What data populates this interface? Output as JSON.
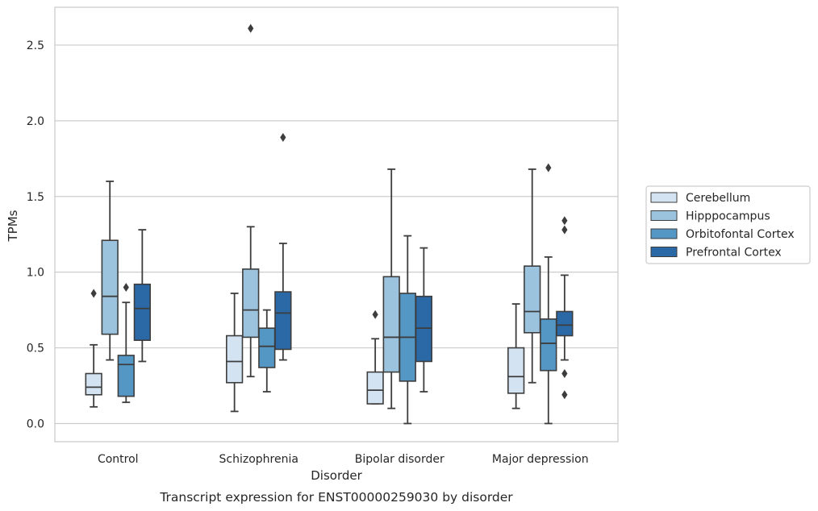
{
  "chart_data": {
    "type": "boxplot",
    "title": "",
    "caption": "Transcript expression for ENST00000259030 by disorder",
    "xlabel": "Disorder",
    "ylabel": "TPMs",
    "ylim": [
      -0.12,
      2.75
    ],
    "yticks": [
      "0.0",
      "0.5",
      "1.0",
      "1.5",
      "2.0",
      "2.5"
    ],
    "grid": "horizontal",
    "legend_position": "right",
    "categories": [
      "Control",
      "Schizophrenia",
      "Bipolar disorder",
      "Major depression"
    ],
    "series": [
      {
        "name": "Cerebellum",
        "color": "#d3e3f2",
        "boxes": [
          {
            "whislo": 0.11,
            "q1": 0.19,
            "med": 0.24,
            "q3": 0.33,
            "whishi": 0.52,
            "fliers": [
              0.86
            ]
          },
          {
            "whislo": 0.08,
            "q1": 0.27,
            "med": 0.41,
            "q3": 0.58,
            "whishi": 0.86,
            "fliers": []
          },
          {
            "whislo": 0.13,
            "q1": 0.13,
            "med": 0.22,
            "q3": 0.34,
            "whishi": 0.56,
            "fliers": [
              0.72
            ]
          },
          {
            "whislo": 0.1,
            "q1": 0.2,
            "med": 0.31,
            "q3": 0.5,
            "whishi": 0.79,
            "fliers": []
          }
        ]
      },
      {
        "name": "Hipppocampus",
        "color": "#9cc3dd",
        "boxes": [
          {
            "whislo": 0.42,
            "q1": 0.59,
            "med": 0.84,
            "q3": 1.21,
            "whishi": 1.6,
            "fliers": []
          },
          {
            "whislo": 0.31,
            "q1": 0.57,
            "med": 0.75,
            "q3": 1.02,
            "whishi": 1.3,
            "fliers": [
              2.61
            ]
          },
          {
            "whislo": 0.1,
            "q1": 0.34,
            "med": 0.57,
            "q3": 0.97,
            "whishi": 1.68,
            "fliers": []
          },
          {
            "whislo": 0.27,
            "q1": 0.6,
            "med": 0.74,
            "q3": 1.04,
            "whishi": 1.68,
            "fliers": []
          }
        ]
      },
      {
        "name": "Orbitofontal Cortex",
        "color": "#5497c5",
        "boxes": [
          {
            "whislo": 0.14,
            "q1": 0.18,
            "med": 0.39,
            "q3": 0.45,
            "whishi": 0.8,
            "fliers": [
              0.9
            ]
          },
          {
            "whislo": 0.21,
            "q1": 0.37,
            "med": 0.51,
            "q3": 0.63,
            "whishi": 0.75,
            "fliers": []
          },
          {
            "whislo": 0.0,
            "q1": 0.28,
            "med": 0.57,
            "q3": 0.86,
            "whishi": 1.24,
            "fliers": []
          },
          {
            "whislo": 0.0,
            "q1": 0.35,
            "med": 0.53,
            "q3": 0.69,
            "whishi": 1.1,
            "fliers": [
              1.69
            ]
          }
        ]
      },
      {
        "name": "Prefrontal Cortex",
        "color": "#2a68a6",
        "boxes": [
          {
            "whislo": 0.41,
            "q1": 0.55,
            "med": 0.76,
            "q3": 0.92,
            "whishi": 1.28,
            "fliers": []
          },
          {
            "whislo": 0.42,
            "q1": 0.49,
            "med": 0.73,
            "q3": 0.87,
            "whishi": 1.19,
            "fliers": [
              1.89
            ]
          },
          {
            "whislo": 0.21,
            "q1": 0.41,
            "med": 0.63,
            "q3": 0.84,
            "whishi": 1.16,
            "fliers": []
          },
          {
            "whislo": 0.42,
            "q1": 0.58,
            "med": 0.65,
            "q3": 0.74,
            "whishi": 0.98,
            "fliers": [
              1.34,
              1.28,
              0.33,
              0.19
            ]
          }
        ]
      }
    ]
  }
}
